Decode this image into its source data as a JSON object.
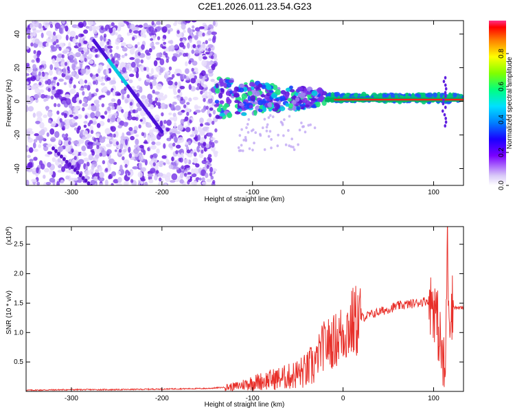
{
  "title": "C2E1.2026.011.23.54.G23",
  "colors": {
    "snr_line": "#e8302a",
    "track_color": "#5a14d0"
  },
  "chart_data": [
    {
      "type": "heatmap",
      "title": "C2E1.2026.011.23.54.G23",
      "xlabel": "Height of straight line (km)",
      "ylabel": "Frequency (Hz)",
      "xlim": [
        -350,
        133
      ],
      "ylim": [
        -50,
        48
      ],
      "xticks": [
        -300,
        -200,
        -100,
        0,
        100
      ],
      "xtick_labels": [
        "-300",
        "-200",
        "-100",
        "0",
        "100"
      ],
      "yticks": [
        -40,
        -20,
        0,
        20,
        40
      ],
      "ytick_labels": [
        "-40",
        "-20",
        "0",
        "20",
        "40"
      ],
      "colorbar": {
        "label": "Normalized spectral amplitude",
        "range": [
          0,
          1
        ],
        "ticks": [
          0.0,
          0.2,
          0.4,
          0.6,
          0.8
        ],
        "tick_labels": [
          "0.0",
          "0.2",
          "0.4",
          "0.6",
          "0.8"
        ]
      },
      "features": [
        {
          "name": "diagonal track",
          "x": [
            -275,
            -200
          ],
          "y": [
            36,
            -18
          ]
        },
        {
          "name": "main carrier",
          "x": [
            -135,
            133
          ],
          "y": [
            1,
            1
          ]
        }
      ]
    },
    {
      "type": "line",
      "xlabel": "Height of straight line (km)",
      "ylabel": "SNR (10 * v/v)",
      "y_multiplier": "(x10",
      "y_exponent": "4",
      "y_multiplier_close": ")",
      "xlim": [
        -350,
        133
      ],
      "ylim": [
        0,
        2.8
      ],
      "xticks": [
        -300,
        -200,
        -100,
        0,
        100
      ],
      "xtick_labels": [
        "-300",
        "-200",
        "-100",
        "0",
        "100"
      ],
      "yticks": [
        0.5,
        1.0,
        1.5,
        2.0,
        2.5
      ],
      "ytick_labels": [
        "0.5",
        "1.0",
        "1.5",
        "2.0",
        "2.5"
      ],
      "series": [
        {
          "name": "SNR",
          "x": [
            -350,
            -300,
            -250,
            -200,
            -150,
            -120,
            -100,
            -80,
            -60,
            -40,
            -30,
            -25,
            -20,
            -10,
            0,
            10,
            20,
            40,
            60,
            80,
            95,
            100,
            105,
            110,
            113,
            115,
            117,
            120,
            125,
            133
          ],
          "y": [
            0.02,
            0.03,
            0.03,
            0.04,
            0.05,
            0.08,
            0.15,
            0.2,
            0.25,
            0.35,
            0.5,
            0.7,
            0.8,
            0.85,
            1.0,
            1.15,
            1.25,
            1.35,
            1.45,
            1.5,
            1.55,
            1.5,
            1.1,
            0.5,
            0.2,
            2.7,
            1.4,
            1.45,
            1.42,
            1.42
          ]
        }
      ]
    }
  ]
}
